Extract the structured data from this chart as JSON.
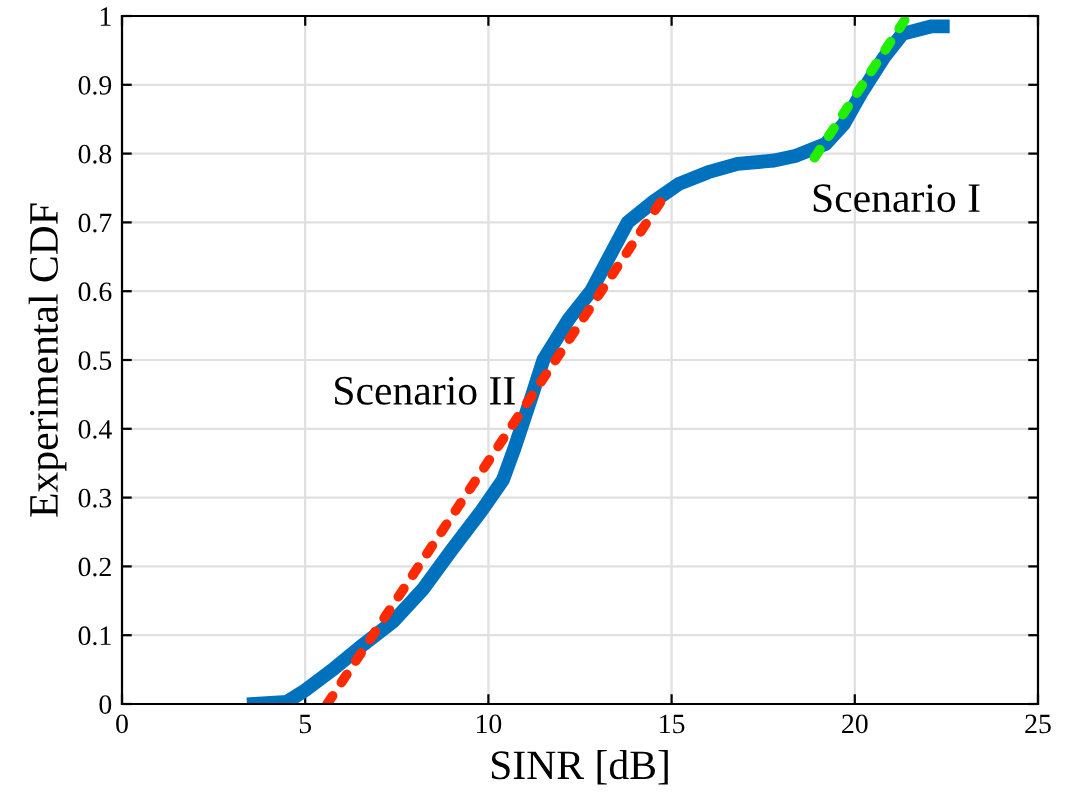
{
  "chart_data": {
    "type": "line",
    "xlabel": "SINR [dB]",
    "ylabel": "Experimental CDF",
    "xlim": [
      0,
      25
    ],
    "ylim": [
      0,
      1
    ],
    "xticks": [
      0,
      5,
      10,
      15,
      20,
      25
    ],
    "yticks": [
      0,
      0.1,
      0.2,
      0.3,
      0.4,
      0.5,
      0.6,
      0.7,
      0.8,
      0.9,
      1
    ],
    "grid": true,
    "series": [
      {
        "color": "#0072bd",
        "line_style": "solid",
        "x": [
          3.6,
          4.5,
          5.0,
          5.8,
          6.6,
          7.4,
          8.2,
          9.0,
          9.8,
          10.4,
          10.7,
          11.2,
          11.5,
          12.2,
          12.8,
          13.3,
          13.8,
          14.5,
          15.2,
          16.0,
          16.8,
          17.8,
          18.4,
          19.2,
          19.7,
          20.2,
          20.8,
          21.3,
          22.1,
          22.4
        ],
        "values": [
          0,
          0.003,
          0.02,
          0.052,
          0.087,
          0.12,
          0.166,
          0.224,
          0.28,
          0.326,
          0.37,
          0.45,
          0.5,
          0.56,
          0.6,
          0.65,
          0.7,
          0.73,
          0.756,
          0.773,
          0.785,
          0.79,
          0.797,
          0.814,
          0.843,
          0.89,
          0.94,
          0.974,
          0.985,
          0.985
        ]
      },
      {
        "color": "#ff2a00",
        "line_style": "dotted",
        "x": [
          5.6,
          14.7
        ],
        "values": [
          0,
          0.73
        ]
      },
      {
        "color": "#22ee00",
        "line_style": "dotted",
        "x": [
          18.9,
          21.4
        ],
        "values": [
          0.794,
          0.997
        ]
      }
    ],
    "annotations": [
      "Scenario I",
      "Scenario II"
    ]
  }
}
